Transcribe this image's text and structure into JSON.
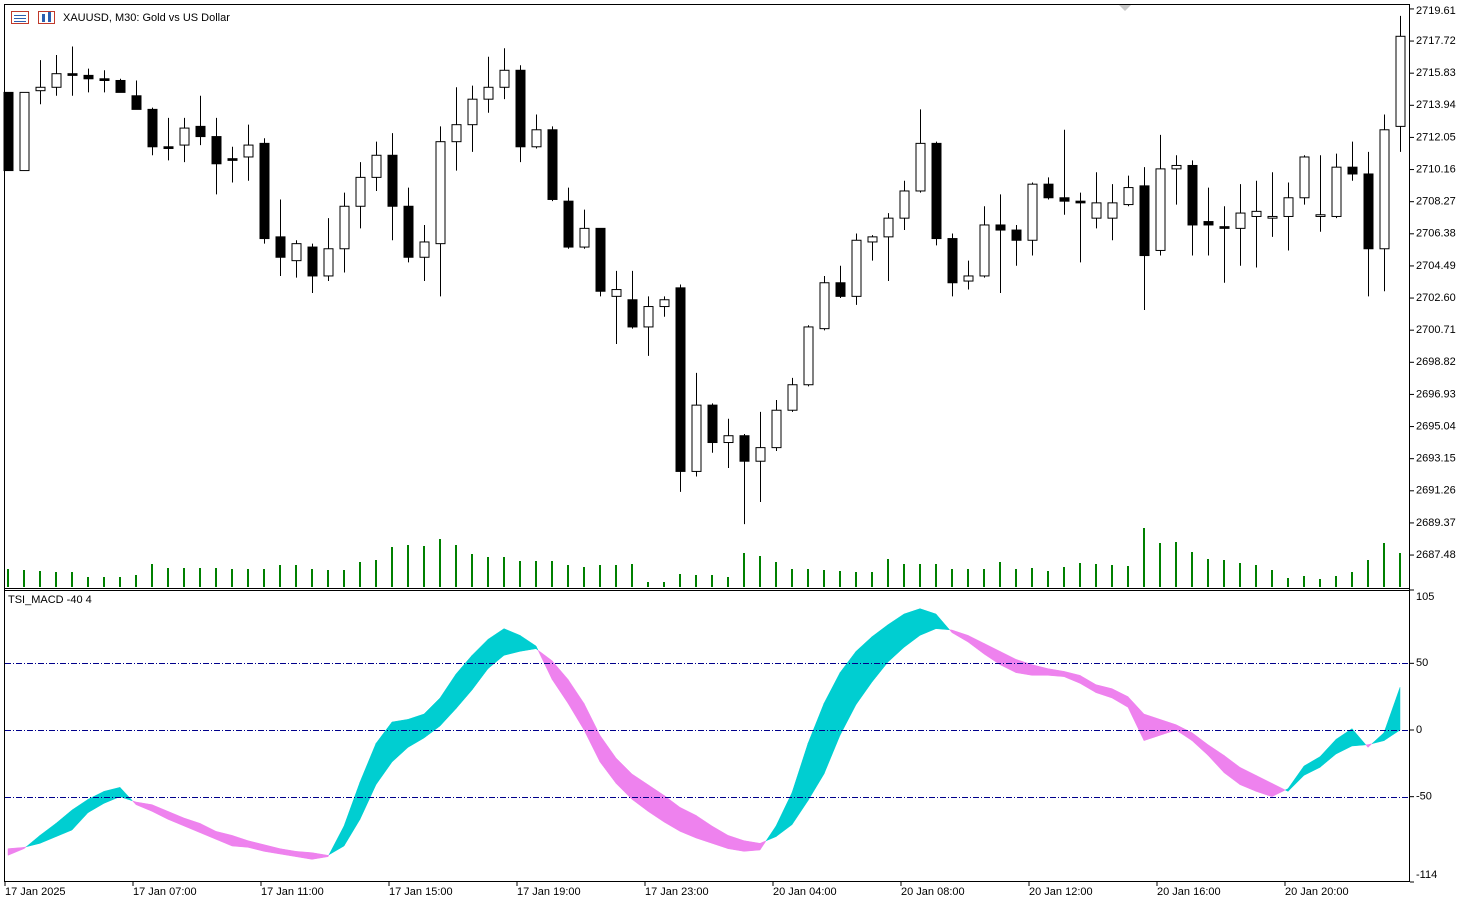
{
  "chart_data": [
    {
      "type": "candlestick",
      "title": "XAUUSD, M30:  Gold vs US Dollar",
      "categories": [
        "17 Jan 2025",
        null,
        null,
        null,
        null,
        null,
        null,
        null,
        "17 Jan 07:00",
        null,
        null,
        null,
        null,
        null,
        null,
        null,
        "17 Jan 11:00",
        null,
        null,
        null,
        null,
        null,
        null,
        null,
        "17 Jan 15:00",
        null,
        null,
        null,
        null,
        null,
        null,
        null,
        "17 Jan 19:00",
        null,
        null,
        null,
        null,
        null,
        null,
        null,
        "17 Jan 23:00",
        null,
        null,
        null,
        null,
        null,
        null,
        null,
        "20 Jan 04:00",
        null,
        null,
        null,
        null,
        null,
        null,
        null,
        "20 Jan 08:00",
        null,
        null,
        null,
        null,
        null,
        null,
        null,
        "20 Jan 12:00",
        null,
        null,
        null,
        null,
        null,
        null,
        null,
        "20 Jan 16:00",
        null,
        null,
        null,
        null,
        null,
        null,
        null,
        "20 Jan 20:00",
        null,
        null,
        null,
        null,
        null,
        null,
        null
      ],
      "open": [
        2714.7,
        2710.1,
        2714.8,
        2715.0,
        2715.8,
        2715.7,
        2715.5,
        2715.4,
        2714.5,
        2713.7,
        2711.5,
        2711.6,
        2712.7,
        2712.1,
        2710.8,
        2710.9,
        2711.7,
        2706.2,
        2704.8,
        2705.6,
        2703.9,
        2705.5,
        2708.0,
        2709.7,
        2711.0,
        2708.0,
        2705.0,
        2705.8,
        2711.8,
        2712.8,
        2714.3,
        2715.0,
        2716.0,
        2711.5,
        2712.5,
        2708.3,
        2705.6,
        2706.7,
        2702.7,
        2702.5,
        2700.9,
        2702.1,
        2703.2,
        2692.4,
        2696.3,
        2694.1,
        2694.5,
        2693.0,
        2693.8,
        2696.0,
        2697.5,
        2700.8,
        2703.5,
        2702.7,
        2705.9,
        2706.2,
        2707.3,
        2708.9,
        2711.7,
        2706.1,
        2703.6,
        2703.9,
        2706.9,
        2706.6,
        2706.0,
        2709.3,
        2708.5,
        2708.3,
        2707.3,
        2707.3,
        2708.1,
        2709.2,
        2705.4,
        2710.2,
        2710.4,
        2707.1,
        2706.8,
        2706.7,
        2707.4,
        2707.3,
        2707.4,
        2708.5,
        2707.4,
        2707.4,
        2710.3,
        2709.9,
        2705.5,
        2712.7
      ],
      "high": [
        2714.7,
        2714.7,
        2716.6,
        2716.9,
        2717.4,
        2716.1,
        2716.0,
        2715.5,
        2715.4,
        2713.8,
        2713.2,
        2713.2,
        2714.5,
        2713.2,
        2711.5,
        2712.8,
        2712.0,
        2708.4,
        2706.0,
        2705.8,
        2707.3,
        2708.8,
        2710.6,
        2711.8,
        2712.3,
        2709.1,
        2706.9,
        2712.7,
        2715.0,
        2715.1,
        2716.8,
        2717.3,
        2716.3,
        2713.4,
        2712.7,
        2709.1,
        2707.8,
        2706.7,
        2704.2,
        2704.2,
        2702.7,
        2702.7,
        2703.4,
        2698.2,
        2696.4,
        2695.5,
        2694.6,
        2695.9,
        2696.6,
        2697.9,
        2701.0,
        2703.9,
        2704.5,
        2706.4,
        2706.3,
        2707.6,
        2709.5,
        2713.7,
        2711.8,
        2706.4,
        2704.8,
        2708.0,
        2708.7,
        2706.9,
        2709.4,
        2709.7,
        2712.5,
        2708.8,
        2710.0,
        2709.3,
        2709.8,
        2710.3,
        2712.2,
        2711.0,
        2710.7,
        2709.1,
        2708.0,
        2709.3,
        2709.5,
        2710.0,
        2709.4,
        2711.0,
        2711.0,
        2711.1,
        2711.8,
        2711.2,
        2713.4,
        2719.2
      ],
      "low": [
        2710.1,
        2710.1,
        2714.0,
        2714.5,
        2714.5,
        2714.7,
        2714.7,
        2714.7,
        2713.7,
        2711.0,
        2710.7,
        2710.6,
        2711.6,
        2708.7,
        2709.4,
        2709.5,
        2705.8,
        2703.9,
        2703.8,
        2702.9,
        2703.6,
        2704.1,
        2706.7,
        2708.9,
        2706.0,
        2704.7,
        2703.6,
        2702.7,
        2710.1,
        2711.2,
        2713.5,
        2714.3,
        2710.6,
        2711.4,
        2708.3,
        2705.5,
        2705.5,
        2702.7,
        2699.9,
        2700.8,
        2699.2,
        2701.5,
        2691.2,
        2692.1,
        2693.5,
        2692.6,
        2689.3,
        2690.6,
        2693.6,
        2695.9,
        2697.4,
        2700.7,
        2702.6,
        2702.2,
        2704.8,
        2703.6,
        2706.6,
        2708.8,
        2705.7,
        2702.7,
        2703.1,
        2703.8,
        2702.9,
        2704.5,
        2705.1,
        2708.4,
        2707.5,
        2704.7,
        2706.7,
        2706.0,
        2708.0,
        2701.9,
        2705.1,
        2708.1,
        2705.1,
        2705.1,
        2703.5,
        2704.5,
        2704.4,
        2706.2,
        2705.4,
        2708.1,
        2706.5,
        2707.3,
        2709.5,
        2702.7,
        2703.0,
        2711.2
      ],
      "close": [
        2710.1,
        2714.7,
        2715.0,
        2715.8,
        2715.7,
        2715.5,
        2715.4,
        2714.7,
        2713.7,
        2711.5,
        2711.4,
        2712.6,
        2712.1,
        2710.5,
        2710.7,
        2711.6,
        2706.1,
        2705.0,
        2705.8,
        2703.9,
        2705.5,
        2708.0,
        2709.7,
        2711.0,
        2708.0,
        2705.0,
        2705.9,
        2711.8,
        2712.8,
        2714.3,
        2715.0,
        2716.0,
        2711.5,
        2712.5,
        2708.4,
        2705.6,
        2706.7,
        2703.0,
        2703.1,
        2700.9,
        2702.1,
        2702.5,
        2692.4,
        2696.3,
        2694.1,
        2694.5,
        2693.0,
        2693.8,
        2696.0,
        2697.5,
        2700.9,
        2703.5,
        2702.7,
        2706.0,
        2706.2,
        2707.3,
        2708.9,
        2711.7,
        2706.1,
        2703.5,
        2703.9,
        2706.9,
        2706.6,
        2706.0,
        2709.3,
        2708.5,
        2708.3,
        2708.2,
        2708.2,
        2708.2,
        2709.1,
        2705.1,
        2710.2,
        2710.4,
        2706.9,
        2706.9,
        2706.7,
        2707.6,
        2707.7,
        2707.4,
        2708.5,
        2710.9,
        2707.5,
        2710.3,
        2709.9,
        2705.5,
        2712.5,
        2718.0
      ],
      "volume": [
        18,
        17,
        16,
        15,
        15,
        10,
        10,
        10,
        12,
        23,
        19,
        19,
        19,
        19,
        18,
        18,
        18,
        22,
        22,
        18,
        17,
        17,
        25,
        27,
        40,
        42,
        41,
        48,
        42,
        33,
        30,
        30,
        26,
        26,
        26,
        22,
        20,
        22,
        22,
        23,
        5,
        5,
        13,
        12,
        12,
        10,
        34,
        31,
        25,
        18,
        18,
        17,
        16,
        15,
        15,
        28,
        23,
        23,
        23,
        18,
        18,
        18,
        25,
        18,
        19,
        16,
        20,
        24,
        23,
        22,
        21,
        59,
        44,
        45,
        35,
        28,
        27,
        24,
        22,
        17,
        9,
        11,
        8,
        11,
        15,
        27,
        44,
        34
      ],
      "ylim": [
        2685.6,
        2719.9
      ],
      "yticks": [
        2719.61,
        2717.72,
        2715.83,
        2713.94,
        2712.05,
        2710.16,
        2708.27,
        2706.38,
        2704.49,
        {
          "value": 2702.6,
          "label": "2702.60"
        },
        2700.71,
        2698.82,
        2696.93,
        2695.04,
        2693.15,
        2691.26,
        2689.37,
        2687.48
      ],
      "up_color": "#ffffff",
      "down_color": "#000000",
      "volume_color": "#008000"
    },
    {
      "type": "band",
      "title": "TSI_MACD -40 4",
      "series": [
        {
          "values": [
            -94,
            -89,
            -79,
            -70,
            -60,
            -52,
            -46,
            -43,
            -56,
            -61,
            -67,
            -72,
            -77,
            -82,
            -87,
            -88,
            -91,
            -93,
            -95,
            -97,
            -95,
            -72,
            -39,
            -10,
            6,
            8,
            12,
            24,
            42,
            56,
            68,
            76,
            71,
            63,
            38,
            20,
            0,
            -24,
            -40,
            -52,
            -61,
            -69,
            -76,
            -81,
            -85,
            -89,
            -91,
            -90,
            -72,
            -47,
            -10,
            20,
            43,
            59,
            70,
            79,
            87,
            91,
            87,
            73,
            66,
            57,
            49,
            43,
            41,
            41,
            40,
            35,
            28,
            24,
            17,
            -8,
            -4,
            0,
            -8,
            -19,
            -32,
            -41,
            -46,
            -50,
            -44,
            -27,
            -20,
            -7,
            1,
            -13,
            -2,
            32
          ]
        },
        {
          "values": [
            -89,
            -88,
            -85,
            -80,
            -75,
            -62,
            -55,
            -50,
            -54,
            -56,
            -61,
            -66,
            -70,
            -76,
            -79,
            -83,
            -86,
            -89,
            -91,
            -92,
            -94,
            -87,
            -67,
            -41,
            -24,
            -13,
            -6,
            3,
            16,
            30,
            46,
            56,
            59,
            61,
            52,
            38,
            20,
            -4,
            -21,
            -33,
            -41,
            -49,
            -58,
            -64,
            -72,
            -79,
            -83,
            -85,
            -80,
            -71,
            -53,
            -33,
            -4,
            19,
            36,
            51,
            62,
            71,
            76,
            75,
            71,
            65,
            59,
            53,
            49,
            46,
            44,
            41,
            34,
            31,
            25,
            12,
            8,
            4,
            -2,
            -11,
            -19,
            -28,
            -34,
            -40,
            -46,
            -34,
            -28,
            -18,
            -12,
            -11,
            -8,
            0
          ]
        }
      ],
      "up_color": "#00ced1",
      "down_color": "#ee82ee",
      "levels": [
        50,
        0,
        -50
      ],
      "level_color": "#00008b",
      "ylim": [
        -114,
        105
      ],
      "yticks": [
        105,
        50,
        0,
        -50,
        -114
      ]
    }
  ]
}
